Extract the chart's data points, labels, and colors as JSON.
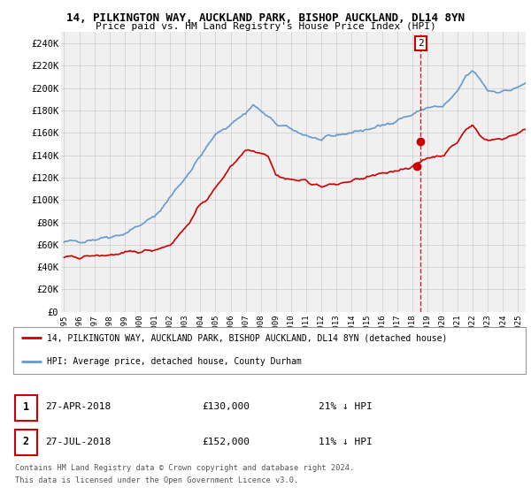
{
  "title1": "14, PILKINGTON WAY, AUCKLAND PARK, BISHOP AUCKLAND, DL14 8YN",
  "title2": "Price paid vs. HM Land Registry's House Price Index (HPI)",
  "ylabel_ticks": [
    "£0",
    "£20K",
    "£40K",
    "£60K",
    "£80K",
    "£100K",
    "£120K",
    "£140K",
    "£160K",
    "£180K",
    "£200K",
    "£220K",
    "£240K"
  ],
  "ytick_values": [
    0,
    20000,
    40000,
    60000,
    80000,
    100000,
    120000,
    140000,
    160000,
    180000,
    200000,
    220000,
    240000
  ],
  "ylim": [
    0,
    250000
  ],
  "xlim_start": 1994.8,
  "xlim_end": 2025.5,
  "xtick_years": [
    1995,
    1996,
    1997,
    1998,
    1999,
    2000,
    2001,
    2002,
    2003,
    2004,
    2005,
    2006,
    2007,
    2008,
    2009,
    2010,
    2011,
    2012,
    2013,
    2014,
    2015,
    2016,
    2017,
    2018,
    2019,
    2020,
    2021,
    2022,
    2023,
    2024,
    2025
  ],
  "red_line_color": "#cc0000",
  "blue_line_color": "#6699cc",
  "dashed_line_color": "#cc0000",
  "dashed_line_x": 2018.57,
  "marker1_x": 2018.32,
  "marker1_y": 130000,
  "marker2_x": 2018.57,
  "marker2_y": 152000,
  "marker_color": "#cc0000",
  "legend_red_label": "14, PILKINGTON WAY, AUCKLAND PARK, BISHOP AUCKLAND, DL14 8YN (detached house)",
  "legend_blue_label": "HPI: Average price, detached house, County Durham",
  "table_row1": [
    "1",
    "27-APR-2018",
    "£130,000",
    "21% ↓ HPI"
  ],
  "table_row2": [
    "2",
    "27-JUL-2018",
    "£152,000",
    "11% ↓ HPI"
  ],
  "footer_line1": "Contains HM Land Registry data © Crown copyright and database right 2024.",
  "footer_line2": "This data is licensed under the Open Government Licence v3.0.",
  "bg_color": "#ffffff",
  "grid_color": "#cccccc",
  "plot_bg_color": "#f0f0f0"
}
